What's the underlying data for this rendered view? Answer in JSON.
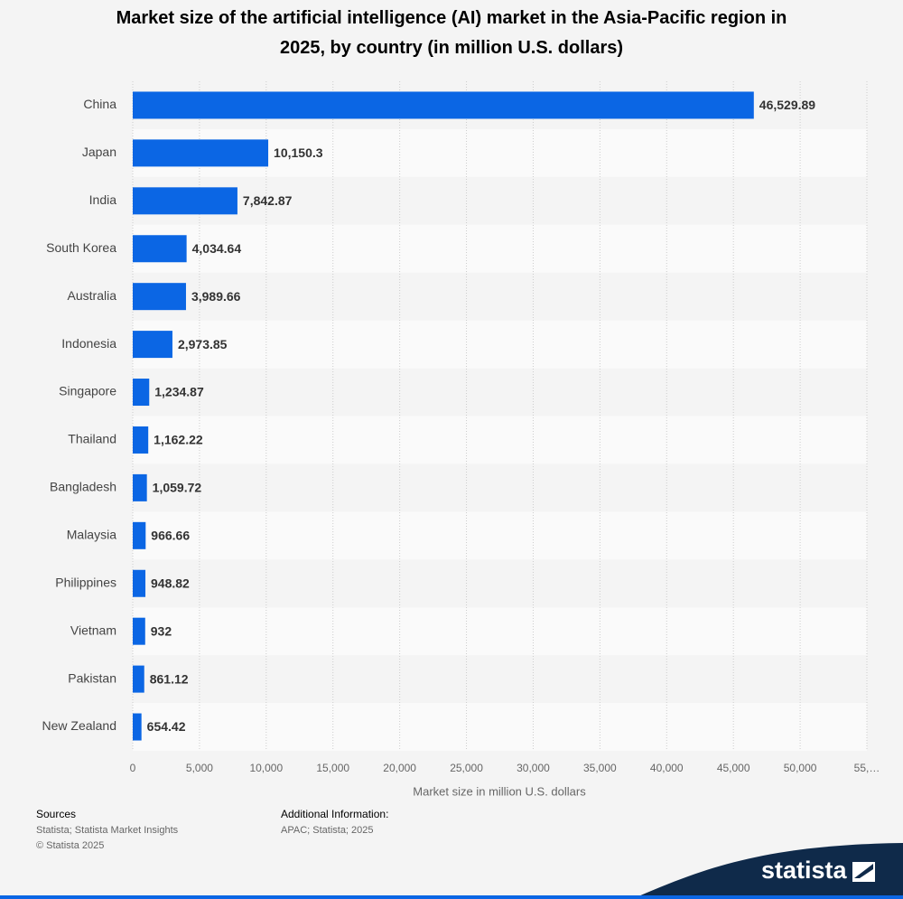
{
  "chart_data": {
    "type": "hbar",
    "title": "Market size of the artificial intelligence (AI) market in the Asia-Pacific region in 2025, by country (in million U.S. dollars)",
    "categories": [
      "China",
      "Japan",
      "India",
      "South Korea",
      "Australia",
      "Indonesia",
      "Singapore",
      "Thailand",
      "Bangladesh",
      "Malaysia",
      "Philippines",
      "Vietnam",
      "Pakistan",
      "New Zealand"
    ],
    "values": [
      46529.89,
      10150.3,
      7842.87,
      4034.64,
      3989.66,
      2973.85,
      1234.87,
      1162.22,
      1059.72,
      966.66,
      948.82,
      932,
      861.12,
      654.42
    ],
    "value_labels": [
      "46,529.89",
      "10,150.3",
      "7,842.87",
      "4,034.64",
      "3,989.66",
      "2,973.85",
      "1,234.87",
      "1,162.22",
      "1,059.72",
      "966.66",
      "948.82",
      "932",
      "861.12",
      "654.42"
    ],
    "color": "#0b66e4",
    "xlabel": "Market size in million U.S. dollars",
    "xlim": [
      0,
      55000
    ],
    "xticks": [
      0,
      {
        "value": 5000,
        "label": "5,000"
      },
      {
        "value": 10000,
        "label": "10,000"
      },
      {
        "value": 15000,
        "label": "15,000"
      },
      {
        "value": 20000,
        "label": "20,000"
      },
      {
        "value": 25000,
        "label": "25,000"
      },
      {
        "value": 30000,
        "label": "30,000"
      },
      {
        "value": 35000,
        "label": "35,000"
      },
      {
        "value": 40000,
        "label": "40,000"
      },
      {
        "value": 45000,
        "label": "45,000"
      },
      {
        "value": 50000,
        "label": "50,000"
      },
      {
        "value": 55000,
        "label": "55,…"
      }
    ],
    "grid": true
  },
  "footer": {
    "sources_title": "Sources",
    "sources_text": "Statista; Statista Market Insights",
    "copyright": "© Statista 2025",
    "additional_title": "Additional Information:",
    "additional_text": "APAC; Statista; 2025",
    "logo": "statista"
  }
}
